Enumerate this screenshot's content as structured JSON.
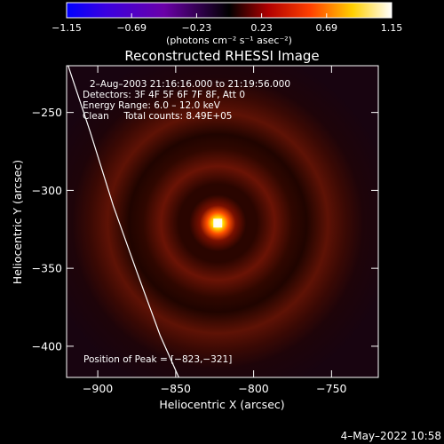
{
  "chart_data": {
    "type": "heatmap",
    "title": "Reconstructed RHESSI Image",
    "xlabel": "Heliocentric X (arcsec)",
    "ylabel": "Heliocentric Y (arcsec)",
    "xlim": [
      -920,
      -720
    ],
    "ylim": [
      -420,
      -220
    ],
    "xticks": [
      -900,
      -850,
      -800,
      -750
    ],
    "yticks": [
      -250,
      -300,
      -350,
      -400
    ],
    "xtick_labels": [
      "−900",
      "−850",
      "−800",
      "−750"
    ],
    "ytick_labels": [
      "−250",
      "−300",
      "−350",
      "−400"
    ],
    "colorbar": {
      "range": [
        -1.15,
        1.15
      ],
      "ticks": [
        -1.15,
        -0.69,
        -0.23,
        0.23,
        0.69,
        1.15
      ],
      "tick_labels": [
        "−1.15",
        "−0.69",
        "−0.23",
        "0.23",
        "0.69",
        "1.15"
      ],
      "units_label": "(photons cm⁻² s⁻¹ asec⁻²)",
      "colors": [
        "#0000ff",
        "#6a00c8",
        "#000000",
        "#ff2000",
        "#ffd000",
        "#ffffff"
      ]
    },
    "peak": {
      "x": -823,
      "y": -321,
      "value": 1.15
    },
    "info_lines": [
      "2–Aug–2003 21:16:16.000 to 21:19:56.000",
      "Detectors: 3F 4F 5F 6F 7F 8F, Att 0",
      "Energy Range: 6.0 – 12.0 keV",
      "Clean     Total counts: 8.49E+05"
    ],
    "peak_label": "Position of Peak = [−823,−321]",
    "limb_curve": {
      "x": [
        -920,
        -905,
        -890,
        -875,
        -860,
        -848
      ],
      "y": [
        -217,
        -262,
        -310,
        -352,
        -393,
        -420
      ]
    }
  },
  "timestamp": "4–May–2022 10:58"
}
